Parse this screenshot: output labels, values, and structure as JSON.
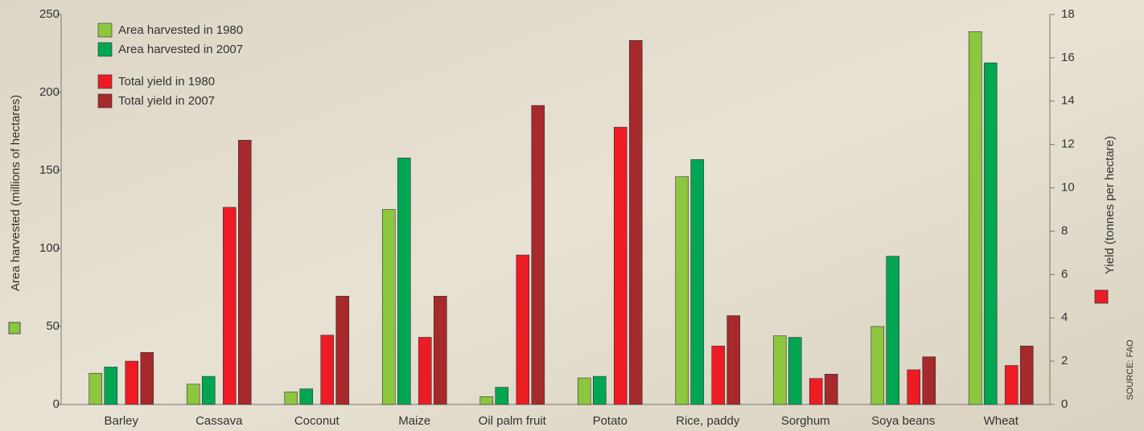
{
  "chart_data": {
    "type": "bar",
    "y_label": "Area harvested (millions of hectares)",
    "y2_label": "Yield (tonnes per hectare)",
    "source": "SOURCE: FAO",
    "categories": [
      "Barley",
      "Cassava",
      "Coconut",
      "Maize",
      "Oil palm fruit",
      "Potato",
      "Rice, paddy",
      "Sorghum",
      "Soya beans",
      "Wheat"
    ],
    "series": [
      {
        "name": "Area harvested in 1980",
        "color": "#8dc63f",
        "values": [
          20,
          13,
          8,
          125,
          5,
          17,
          146,
          44,
          50,
          239
        ]
      },
      {
        "name": "Area harvested in 2007",
        "color": "#00a651",
        "values": [
          24,
          18,
          10,
          158,
          11,
          18,
          157,
          43,
          95,
          219
        ]
      },
      {
        "name": "Total yield in 1980",
        "color": "#ed1c24",
        "axis": "y2",
        "values": [
          2.0,
          9.1,
          3.2,
          3.1,
          6.9,
          12.8,
          2.7,
          1.2,
          1.6,
          1.8
        ]
      },
      {
        "name": "Total yield in 2007",
        "color": "#a6292c",
        "axis": "y2",
        "values": [
          2.4,
          12.2,
          5.0,
          5.0,
          13.8,
          16.8,
          4.1,
          1.4,
          2.2,
          2.7
        ]
      }
    ],
    "ylim": [
      0,
      250
    ],
    "yticks": [
      0,
      50,
      100,
      150,
      200,
      250
    ],
    "y2lim": [
      0,
      18
    ],
    "y2ticks": [
      0,
      2,
      4,
      6,
      8,
      10,
      12,
      14,
      16,
      18
    ]
  }
}
